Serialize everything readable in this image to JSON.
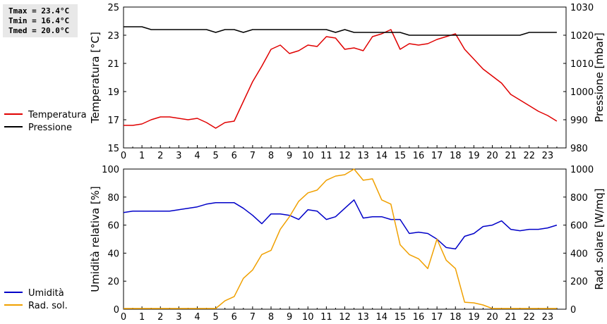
{
  "stats": {
    "tmax": "Tmax = 23.4°C",
    "tmin": "Tmin = 16.4°C",
    "tmed": "Tmed = 20.0°C"
  },
  "chart_data": [
    {
      "type": "line",
      "xlim": [
        0,
        24
      ],
      "x_ticks": [
        "0",
        "1",
        "2",
        "3",
        "4",
        "5",
        "6",
        "7",
        "8",
        "9",
        "10",
        "11",
        "12",
        "13",
        "14",
        "15",
        "16",
        "17",
        "18",
        "19",
        "20",
        "21",
        "22",
        "23"
      ],
      "ylabel": "Temperatura [°C]",
      "ylim": [
        15,
        25
      ],
      "y_ticks": [
        "15",
        "17",
        "19",
        "21",
        "23",
        "25"
      ],
      "y2label": "Pressione [mbar]",
      "y2lim": [
        980,
        1030
      ],
      "y2_ticks": [
        "980",
        "990",
        "1000",
        "1010",
        "1020",
        "1030"
      ],
      "legend_position": "left",
      "series": [
        {
          "name": "Temperatura",
          "color": "#e00000",
          "axis": "left",
          "x": [
            0,
            0.5,
            1,
            1.5,
            2,
            2.5,
            3,
            3.5,
            4,
            4.5,
            5,
            5.5,
            6,
            6.5,
            7,
            7.5,
            8,
            8.5,
            9,
            9.5,
            10,
            10.5,
            11,
            11.5,
            12,
            12.5,
            13,
            13.5,
            14,
            14.5,
            15,
            15.5,
            16,
            16.5,
            17,
            17.5,
            18,
            18.5,
            19,
            19.5,
            20,
            20.5,
            21,
            21.5,
            22,
            22.5,
            23,
            23.5
          ],
          "values": [
            16.6,
            16.6,
            16.7,
            17.0,
            17.2,
            17.2,
            17.1,
            17.0,
            17.1,
            16.8,
            16.4,
            16.8,
            16.9,
            18.3,
            19.7,
            20.8,
            22.0,
            22.3,
            21.7,
            21.9,
            22.3,
            22.2,
            22.9,
            22.8,
            22.0,
            22.1,
            21.9,
            22.9,
            23.1,
            23.4,
            22.0,
            22.4,
            22.3,
            22.4,
            22.7,
            22.9,
            23.1,
            22.0,
            21.3,
            20.6,
            20.1,
            19.6,
            18.8,
            18.4,
            18.0,
            17.6,
            17.3,
            16.9
          ]
        },
        {
          "name": "Pressione",
          "color": "#000000",
          "axis": "right",
          "x": [
            0,
            0.5,
            1,
            1.5,
            2,
            2.5,
            3,
            3.5,
            4,
            4.5,
            5,
            5.5,
            6,
            6.5,
            7,
            7.5,
            8,
            8.5,
            9,
            9.5,
            10,
            10.5,
            11,
            11.5,
            12,
            12.5,
            13,
            13.5,
            14,
            14.5,
            15,
            15.5,
            16,
            16.5,
            17,
            17.5,
            18,
            18.5,
            19,
            19.5,
            20,
            20.5,
            21,
            21.5,
            22,
            22.5,
            23,
            23.5
          ],
          "values": [
            1023,
            1023,
            1023,
            1022,
            1022,
            1022,
            1022,
            1022,
            1022,
            1022,
            1021,
            1022,
            1022,
            1021,
            1022,
            1022,
            1022,
            1022,
            1022,
            1022,
            1022,
            1022,
            1022,
            1021,
            1022,
            1021,
            1021,
            1021,
            1021,
            1021,
            1021,
            1020,
            1020,
            1020,
            1020,
            1020,
            1020,
            1020,
            1020,
            1020,
            1020,
            1020,
            1020,
            1020,
            1021,
            1021,
            1021,
            1021
          ]
        }
      ]
    },
    {
      "type": "line",
      "xlim": [
        0,
        24
      ],
      "x_ticks": [
        "0",
        "1",
        "2",
        "3",
        "4",
        "5",
        "6",
        "7",
        "8",
        "9",
        "10",
        "11",
        "12",
        "13",
        "14",
        "15",
        "16",
        "17",
        "18",
        "19",
        "20",
        "21",
        "22",
        "23"
      ],
      "ylabel": "Umidità relativa [%]",
      "ylim": [
        0,
        100
      ],
      "y_ticks": [
        "0",
        "20",
        "40",
        "60",
        "80",
        "100"
      ],
      "y2label": "Rad. solare [W/mq]",
      "y2lim": [
        0,
        1000
      ],
      "y2_ticks": [
        "0",
        "200",
        "400",
        "600",
        "800",
        "1000"
      ],
      "legend_position": "left",
      "series": [
        {
          "name": "Umidità",
          "color": "#0000c8",
          "axis": "left",
          "x": [
            0,
            0.5,
            1,
            1.5,
            2,
            2.5,
            3,
            3.5,
            4,
            4.5,
            5,
            5.5,
            6,
            6.5,
            7,
            7.5,
            8,
            8.5,
            9,
            9.5,
            10,
            10.5,
            11,
            11.5,
            12,
            12.5,
            13,
            13.5,
            14,
            14.5,
            15,
            15.5,
            16,
            16.5,
            17,
            17.5,
            18,
            18.5,
            19,
            19.5,
            20,
            20.5,
            21,
            21.5,
            22,
            22.5,
            23,
            23.5
          ],
          "values": [
            69,
            70,
            70,
            70,
            70,
            70,
            71,
            72,
            73,
            75,
            76,
            76,
            76,
            72,
            67,
            61,
            68,
            68,
            67,
            64,
            71,
            70,
            64,
            66,
            72,
            78,
            65,
            66,
            66,
            64,
            64,
            54,
            55,
            54,
            50,
            44,
            43,
            52,
            54,
            59,
            60,
            63,
            57,
            56,
            57,
            57,
            58,
            60
          ]
        },
        {
          "name": "Rad. sol.",
          "color": "#f0a000",
          "axis": "right",
          "x": [
            0,
            0.5,
            1,
            1.5,
            2,
            2.5,
            3,
            3.5,
            4,
            4.5,
            5,
            5.5,
            6,
            6.5,
            7,
            7.5,
            8,
            8.5,
            9,
            9.5,
            10,
            10.5,
            11,
            11.5,
            12,
            12.5,
            13,
            13.5,
            14,
            14.5,
            15,
            15.5,
            16,
            16.5,
            17,
            17.5,
            18,
            18.5,
            19,
            19.5,
            20,
            20.5,
            21,
            21.5,
            22,
            22.5,
            23,
            23.5
          ],
          "values": [
            5,
            5,
            5,
            5,
            5,
            5,
            5,
            5,
            5,
            5,
            5,
            60,
            90,
            220,
            280,
            390,
            420,
            570,
            660,
            770,
            830,
            850,
            920,
            950,
            960,
            1030,
            920,
            930,
            780,
            750,
            460,
            390,
            360,
            290,
            500,
            350,
            290,
            50,
            45,
            30,
            5,
            5,
            5,
            5,
            5,
            5,
            5,
            5
          ]
        }
      ]
    }
  ]
}
